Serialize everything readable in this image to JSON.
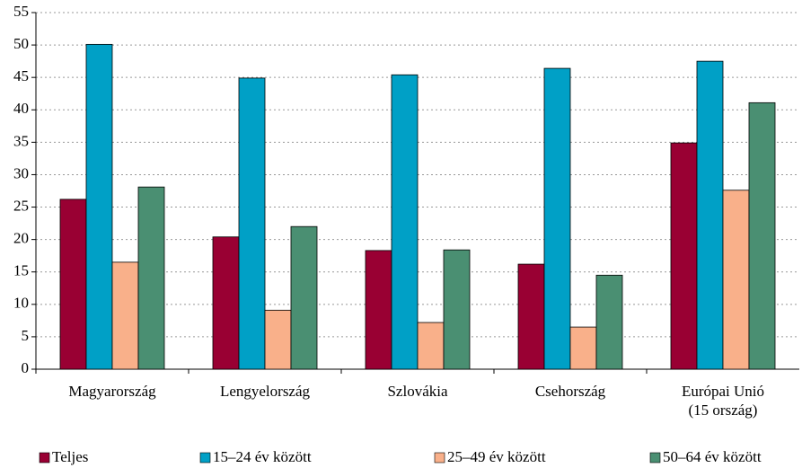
{
  "chart_data": {
    "type": "bar",
    "categories": [
      "Magyarország",
      "Lengyelország",
      "Szlovákia",
      "Csehország",
      "Európai Unió\n(15 ország)"
    ],
    "series": [
      {
        "name": "Teljes",
        "color": "#990033",
        "values": [
          26.2,
          20.4,
          18.3,
          16.2,
          34.9
        ]
      },
      {
        "name": "15–24 év között",
        "color": "#00a0c6",
        "values": [
          50.1,
          44.9,
          45.4,
          46.4,
          47.5
        ]
      },
      {
        "name": "25–49 év között",
        "color": "#f9b08a",
        "values": [
          16.5,
          9.1,
          7.2,
          6.5,
          27.6
        ]
      },
      {
        "name": "50–64 év között",
        "color": "#4a8f72",
        "values": [
          28.1,
          22.0,
          18.4,
          14.5,
          41.1
        ]
      }
    ],
    "ylim": [
      0,
      55
    ],
    "yticks": [
      0,
      5,
      10,
      15,
      20,
      25,
      30,
      35,
      40,
      45,
      50,
      55
    ],
    "grid": true,
    "legend": "bottom"
  }
}
